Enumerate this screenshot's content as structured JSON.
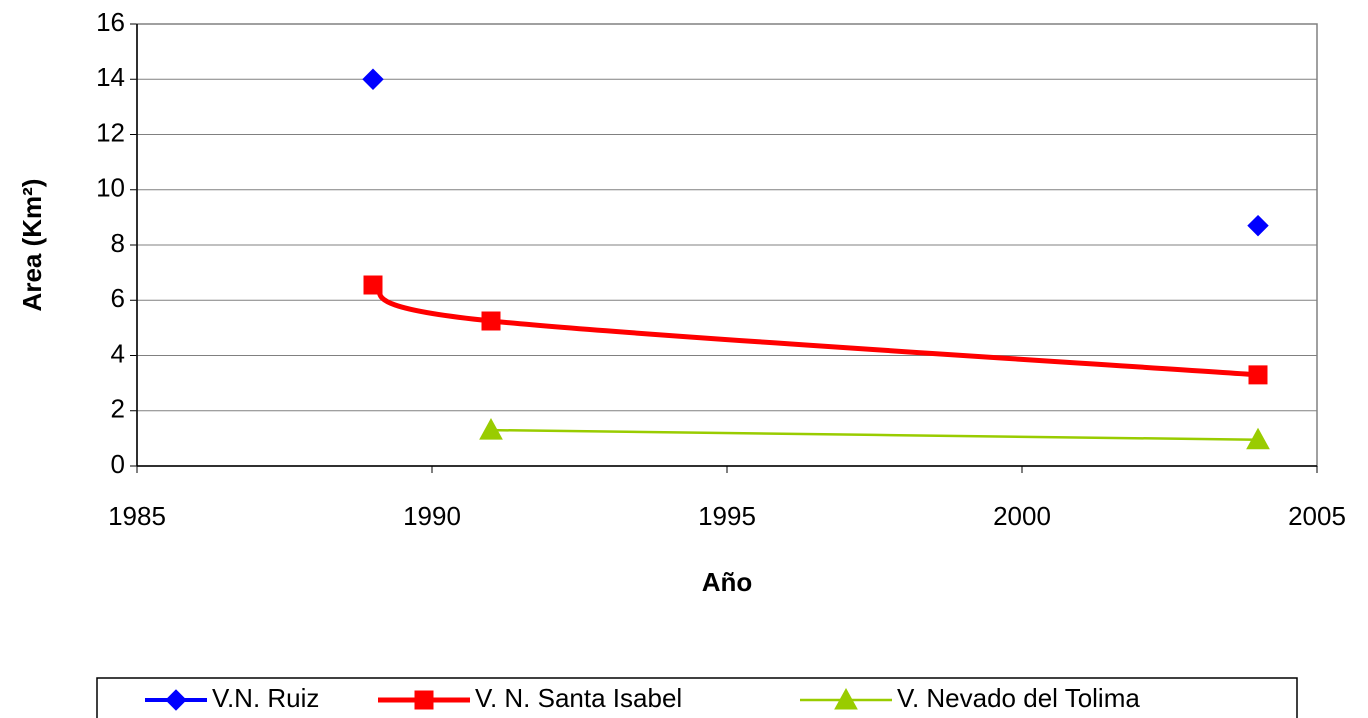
{
  "chart_data": {
    "type": "line",
    "x_label": "Año",
    "y_label": "Area (Km²)",
    "x": [
      1989,
      1991,
      2004
    ],
    "series": [
      {
        "name": "V.N. Ruiz",
        "color": "#0000ff",
        "values": [
          14,
          null,
          8.7
        ]
      },
      {
        "name": "V. N. Santa Isabel",
        "color": "#ff0000",
        "values": [
          6.55,
          5.25,
          3.3
        ]
      },
      {
        "name": "V. Nevado del Tolima",
        "color": "#99cc00",
        "values": [
          null,
          1.3,
          0.95
        ]
      }
    ],
    "xlim": [
      1985,
      2005
    ],
    "xticks": [
      1985,
      1990,
      1995,
      2000,
      2005
    ],
    "ylim": [
      0,
      16
    ],
    "yticks": [
      0,
      2,
      4,
      6,
      8,
      10,
      12,
      14,
      16
    ],
    "grid": true,
    "smooth": true,
    "legend": "bottom"
  }
}
